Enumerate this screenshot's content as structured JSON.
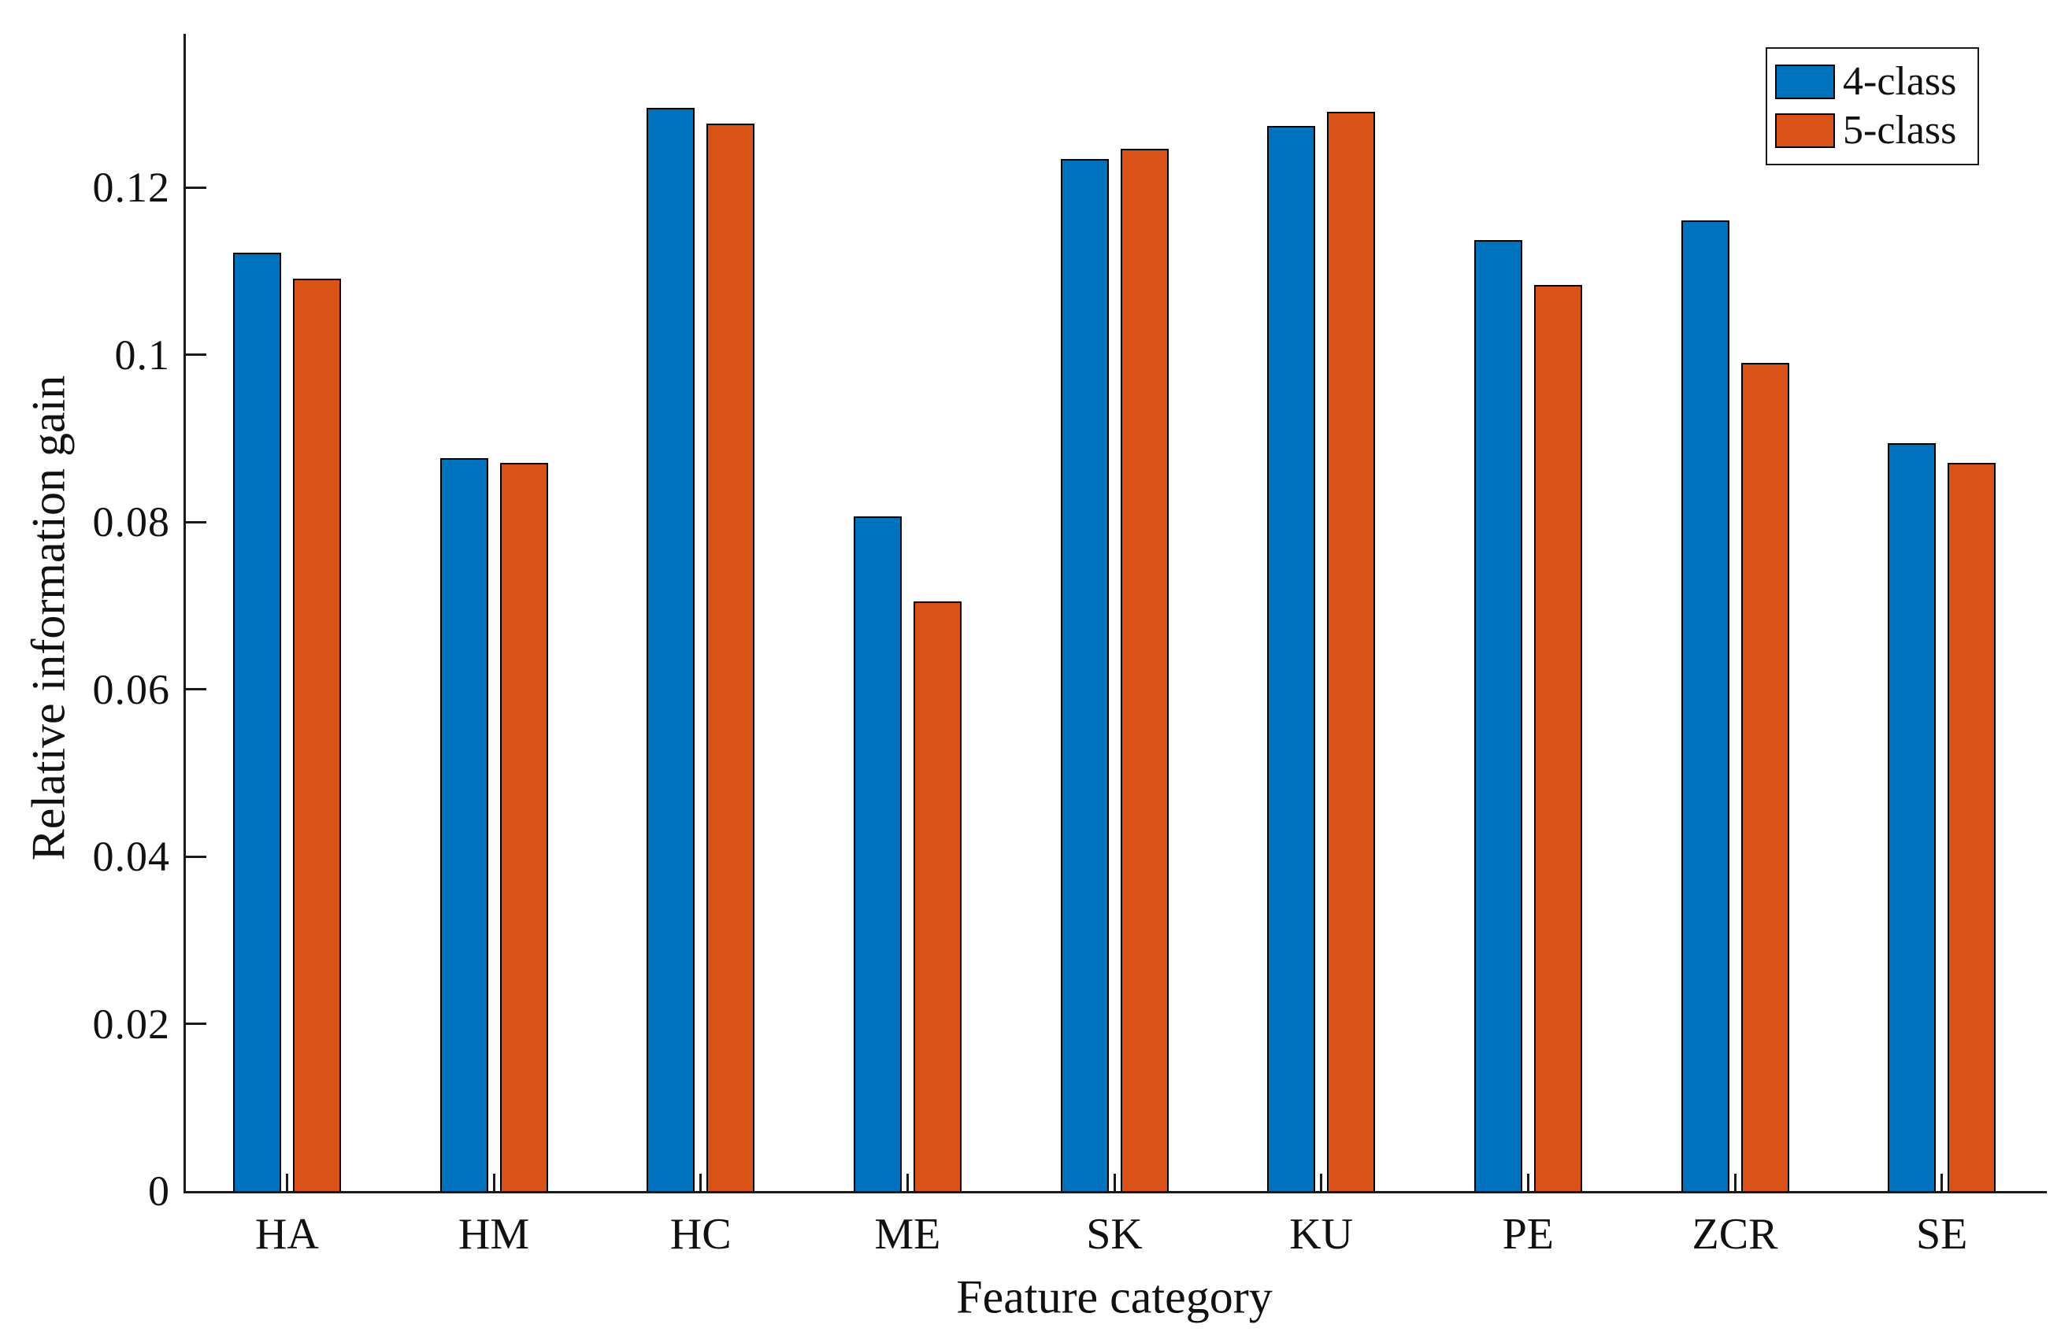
{
  "figure": {
    "ylabel": "Relative information gain",
    "xlabel": "Feature category"
  },
  "legend": {
    "position": "top-right",
    "items": [
      {
        "label": "4-class",
        "color": "#0072BD"
      },
      {
        "label": "5-class",
        "color": "#D95319"
      }
    ]
  },
  "chart_data": {
    "type": "bar",
    "title": "",
    "xlabel": "Feature category",
    "ylabel": "Relative information gain",
    "categories": [
      "HA",
      "HM",
      "HC",
      "ME",
      "SK",
      "KU",
      "PE",
      "ZCR",
      "SE"
    ],
    "series": [
      {
        "name": "4-class",
        "color": "#0072BD",
        "values": [
          0.1122,
          0.0876,
          0.1295,
          0.0807,
          0.1234,
          0.1273,
          0.1137,
          0.116,
          0.0894
        ]
      },
      {
        "name": "5-class",
        "color": "#D95319",
        "values": [
          0.1091,
          0.0871,
          0.1276,
          0.0705,
          0.1246,
          0.129,
          0.1083,
          0.099,
          0.0871
        ]
      }
    ],
    "ylim": [
      0,
      0.1384
    ],
    "yticks": [
      0,
      0.02,
      0.04,
      0.06,
      0.08,
      0.1,
      0.12
    ],
    "ytick_labels": [
      "0",
      "0.02",
      "0.04",
      "0.06",
      "0.08",
      "0.1",
      "0.12"
    ],
    "grid": false,
    "bar_edge_color": "#000000",
    "legend_position": "top-right"
  }
}
